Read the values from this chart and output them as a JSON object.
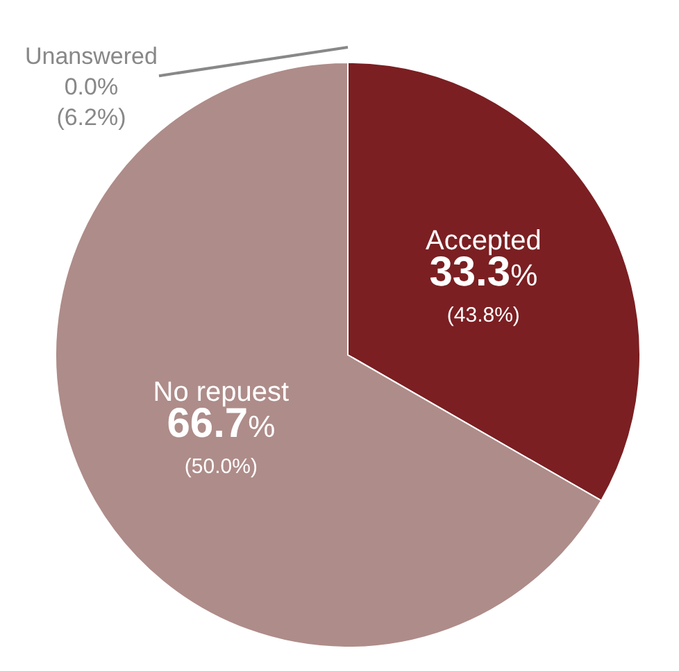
{
  "chart_data": {
    "type": "pie",
    "categories": [
      "Accepted",
      "No repuest",
      "Unanswered"
    ],
    "values": [
      33.3,
      66.7,
      0.0
    ],
    "colors": [
      "#7b1f22",
      "#ae8c89",
      "#9a9a9a"
    ],
    "value_labels": [
      "33.3% (43.8%)",
      "66.7% (50.0%)",
      "0.0% (6.2%)"
    ],
    "legend": false
  }
}
